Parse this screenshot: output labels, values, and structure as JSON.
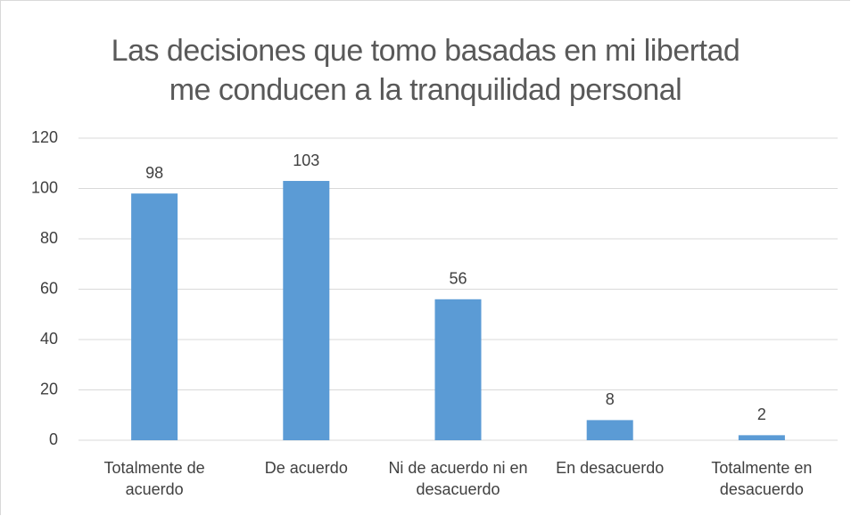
{
  "chart_data": {
    "type": "bar",
    "title": "Las decisiones que tomo basadas en mi libertad me conducen a la tranquilidad personal",
    "categories": [
      "Totalmente de acuerdo",
      "De acuerdo",
      "Ni de acuerdo ni en desacuerdo",
      "En desacuerdo",
      "Totalmente en desacuerdo"
    ],
    "values": [
      98,
      103,
      56,
      8,
      2
    ],
    "color": "#5b9bd5",
    "ylim": [
      0,
      120
    ],
    "yticks": [
      0,
      20,
      40,
      60,
      80,
      100,
      120
    ],
    "grid": true
  }
}
